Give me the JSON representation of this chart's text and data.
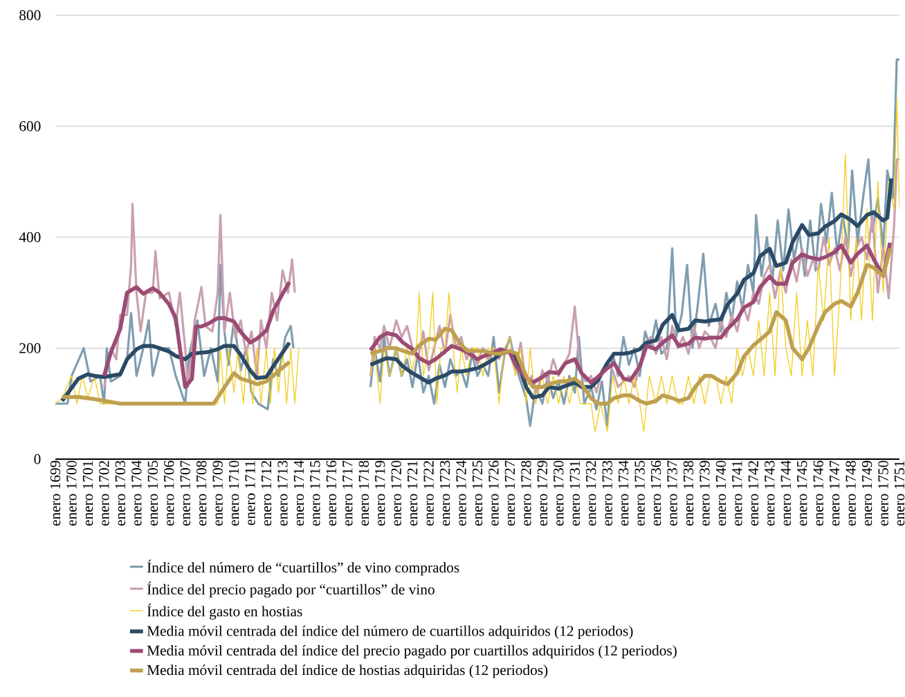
{
  "chart_data": {
    "type": "line",
    "xlim": [
      "1699-01",
      "1751-01"
    ],
    "xticks": [
      {
        "value": "1699-01",
        "label": "enero 1699"
      },
      {
        "value": "1700-01",
        "label": "enero 1700"
      },
      {
        "value": "1701-01",
        "label": "enero 1701"
      },
      {
        "value": "1702-01",
        "label": "enero 1702"
      },
      {
        "value": "1703-01",
        "label": "enero 1703"
      },
      {
        "value": "1704-01",
        "label": "enero 1704"
      },
      {
        "value": "1705-01",
        "label": "enero 1705"
      },
      {
        "value": "1706-01",
        "label": "enero 1706"
      },
      {
        "value": "1707-01",
        "label": "enero 1707"
      },
      {
        "value": "1708-01",
        "label": "enero 1708"
      },
      {
        "value": "1709-01",
        "label": "enero 1709"
      },
      {
        "value": "1710-01",
        "label": "enero 1710"
      },
      {
        "value": "1711-01",
        "label": "enero 1711"
      },
      {
        "value": "1712-01",
        "label": "enero 1712"
      },
      {
        "value": "1713-01",
        "label": "enero 1713"
      },
      {
        "value": "1714-01",
        "label": "enero 1714"
      },
      {
        "value": "1715-01",
        "label": "enero 1715"
      },
      {
        "value": "1716-01",
        "label": "enero 1716"
      },
      {
        "value": "1717-01",
        "label": "enero 1717"
      },
      {
        "value": "1718-01",
        "label": "enero 1718"
      },
      {
        "value": "1719-01",
        "label": "enero 1719"
      },
      {
        "value": "1720-01",
        "label": "enero 1720"
      },
      {
        "value": "1721-01",
        "label": "enero 1721"
      },
      {
        "value": "1722-01",
        "label": "enero 1722"
      },
      {
        "value": "1723-01",
        "label": "enero 1723"
      },
      {
        "value": "1724-01",
        "label": "enero 1724"
      },
      {
        "value": "1725-01",
        "label": "enero 1725"
      },
      {
        "value": "1726-01",
        "label": "enero 1726"
      },
      {
        "value": "1727-01",
        "label": "enero 1727"
      },
      {
        "value": "1728-01",
        "label": "enero 1728"
      },
      {
        "value": "1729-01",
        "label": "enero 1729"
      },
      {
        "value": "1730-01",
        "label": "enero 1730"
      },
      {
        "value": "1731-01",
        "label": "enero 1731"
      },
      {
        "value": "1732-01",
        "label": "enero 1732"
      },
      {
        "value": "1733-01",
        "label": "enero 1733"
      },
      {
        "value": "1734-01",
        "label": "enero 1734"
      },
      {
        "value": "1735-01",
        "label": "enero 1735"
      },
      {
        "value": "1736-01",
        "label": "enero 1736"
      },
      {
        "value": "1737-01",
        "label": "enero 1737"
      },
      {
        "value": "1738-01",
        "label": "enero 1738"
      },
      {
        "value": "1739-01",
        "label": "enero 1739"
      },
      {
        "value": "1740-01",
        "label": "enero 1740"
      },
      {
        "value": "1741-01",
        "label": "enero 1741"
      },
      {
        "value": "1742-01",
        "label": "enero 1742"
      },
      {
        "value": "1743-01",
        "label": "enero 1743"
      },
      {
        "value": "1744-01",
        "label": "enero 1744"
      },
      {
        "value": "1745-01",
        "label": "enero 1745"
      },
      {
        "value": "1746-01",
        "label": "enero 1746"
      },
      {
        "value": "1747-01",
        "label": "enero 1747"
      },
      {
        "value": "1748-01",
        "label": "enero 1748"
      },
      {
        "value": "1749-01",
        "label": "enero 1749"
      },
      {
        "value": "1750-01",
        "label": "enero 1750"
      },
      {
        "value": "1751-01",
        "label": "enero 1751"
      }
    ],
    "ylim": [
      0,
      800
    ],
    "yticks": [
      0,
      200,
      400,
      600,
      800
    ],
    "grid": "y",
    "legend": "bottom",
    "series": [
      {
        "name": "Índice del número de “cuartillos” de vino comprados",
        "color": "#7f9db0",
        "x": [
          "1699-01",
          "1699-10",
          "1700-01",
          "1700-10",
          "1701-03",
          "1701-10",
          "1702-01",
          "1702-03",
          "1702-06",
          "1703-01",
          "1703-06",
          "1703-09",
          "1704-01",
          "1704-06",
          "1704-10",
          "1705-01",
          "1705-06",
          "1706-01",
          "1706-06",
          "1707-01",
          "1707-04",
          "1707-10",
          "1708-03",
          "1708-08",
          "1709-01",
          "1709-03",
          "1709-06",
          "1709-09",
          "1710-01",
          "1710-06",
          "1710-10",
          "1711-02",
          "1711-07",
          "1712-02",
          "1712-06",
          "1712-10",
          "1713-03",
          "1713-07",
          "1713-09",
          "1716-01",
          "1718-06",
          "1718-09",
          "1719-01",
          "1719-04",
          "1719-08",
          "1720-01",
          "1720-05",
          "1720-09",
          "1721-01",
          "1721-05",
          "1721-09",
          "1722-01",
          "1722-05",
          "1722-09",
          "1723-01",
          "1723-05",
          "1723-09",
          "1724-01",
          "1724-05",
          "1724-09",
          "1725-01",
          "1725-05",
          "1725-09",
          "1726-01",
          "1726-05",
          "1726-09",
          "1727-01",
          "1727-05",
          "1727-09",
          "1728-01",
          "1728-04",
          "1728-08",
          "1729-01",
          "1729-05",
          "1729-09",
          "1730-01",
          "1730-05",
          "1730-09",
          "1731-01",
          "1731-04",
          "1731-08",
          "1732-01",
          "1732-05",
          "1732-09",
          "1733-01",
          "1733-05",
          "1733-09",
          "1734-01",
          "1734-05",
          "1734-09",
          "1735-01",
          "1735-05",
          "1735-09",
          "1736-01",
          "1736-05",
          "1736-09",
          "1737-01",
          "1737-04",
          "1737-08",
          "1737-12",
          "1738-04",
          "1738-08",
          "1738-12",
          "1739-04",
          "1739-09",
          "1740-01",
          "1740-05",
          "1740-09",
          "1741-01",
          "1741-05",
          "1741-09",
          "1742-01",
          "1742-03",
          "1742-07",
          "1742-11",
          "1743-03",
          "1743-07",
          "1743-11",
          "1744-03",
          "1744-07",
          "1744-11",
          "1745-03",
          "1745-07",
          "1745-11",
          "1746-03",
          "1746-07",
          "1746-11",
          "1747-03",
          "1747-07",
          "1747-11",
          "1748-02",
          "1748-06",
          "1748-10",
          "1749-02",
          "1749-05",
          "1749-09",
          "1750-01",
          "1750-04",
          "1750-08",
          "1750-11",
          "1751-01"
        ],
        "values": [
          100,
          100,
          150,
          200,
          140,
          150,
          100,
          200,
          140,
          150,
          180,
          263,
          150,
          200,
          250,
          150,
          200,
          200,
          150,
          100,
          190,
          250,
          150,
          200,
          140,
          350,
          230,
          170,
          250,
          160,
          200,
          120,
          100,
          90,
          180,
          150,
          220,
          240,
          200,
          null,
          130,
          200,
          140,
          220,
          150,
          200,
          150,
          180,
          130,
          190,
          120,
          150,
          100,
          170,
          130,
          180,
          150,
          160,
          130,
          190,
          150,
          170,
          150,
          220,
          120,
          190,
          220,
          170,
          140,
          110,
          60,
          130,
          100,
          150,
          110,
          140,
          100,
          150,
          120,
          220,
          100,
          130,
          90,
          140,
          60,
          190,
          150,
          220,
          170,
          200,
          150,
          230,
          200,
          250,
          190,
          200,
          380,
          220,
          260,
          350,
          200,
          280,
          370,
          240,
          280,
          230,
          300,
          250,
          320,
          270,
          350,
          300,
          440,
          330,
          400,
          320,
          430,
          340,
          450,
          360,
          410,
          330,
          430,
          340,
          460,
          390,
          480,
          370,
          440,
          380,
          520,
          390,
          470,
          540,
          410,
          470,
          380,
          520,
          470,
          720,
          720
        ]
      },
      {
        "name": "Índice del precio pagado por “cuartillos” de vino",
        "color": "#c9a0ae",
        "x": [
          "1702-01",
          "1702-06",
          "1702-10",
          "1703-01",
          "1703-06",
          "1703-09",
          "1703-10",
          "1704-01",
          "1704-04",
          "1704-08",
          "1705-01",
          "1705-03",
          "1705-06",
          "1706-01",
          "1706-06",
          "1706-09",
          "1707-01",
          "1707-03",
          "1707-08",
          "1708-01",
          "1708-04",
          "1708-09",
          "1709-01",
          "1709-03",
          "1709-06",
          "1709-10",
          "1710-02",
          "1710-06",
          "1710-10",
          "1711-02",
          "1711-06",
          "1711-09",
          "1712-01",
          "1712-05",
          "1712-09",
          "1713-01",
          "1713-05",
          "1713-08",
          "1713-10",
          "1716-01",
          "1718-06",
          "1718-09",
          "1719-01",
          "1719-04",
          "1719-08",
          "1720-01",
          "1720-05",
          "1720-09",
          "1721-01",
          "1721-05",
          "1721-09",
          "1722-01",
          "1722-05",
          "1722-09",
          "1723-01",
          "1723-05",
          "1723-09",
          "1724-01",
          "1724-05",
          "1724-09",
          "1725-01",
          "1725-05",
          "1725-09",
          "1726-01",
          "1726-05",
          "1726-09",
          "1727-01",
          "1727-05",
          "1727-09",
          "1728-01",
          "1728-05",
          "1728-09",
          "1729-01",
          "1729-05",
          "1729-09",
          "1730-01",
          "1730-05",
          "1730-09",
          "1731-01",
          "1731-05",
          "1731-09",
          "1732-01",
          "1732-05",
          "1732-09",
          "1733-01",
          "1733-05",
          "1733-09",
          "1734-01",
          "1734-05",
          "1734-09",
          "1735-01",
          "1735-05",
          "1735-09",
          "1736-01",
          "1736-05",
          "1736-09",
          "1737-01",
          "1737-05",
          "1737-09",
          "1738-01",
          "1738-05",
          "1738-09",
          "1739-01",
          "1739-05",
          "1739-09",
          "1740-01",
          "1740-05",
          "1740-09",
          "1741-01",
          "1741-05",
          "1741-09",
          "1742-01",
          "1742-05",
          "1742-09",
          "1743-01",
          "1743-05",
          "1743-09",
          "1744-01",
          "1744-05",
          "1744-09",
          "1745-01",
          "1745-05",
          "1745-09",
          "1746-01",
          "1746-05",
          "1746-09",
          "1747-01",
          "1747-05",
          "1747-09",
          "1748-01",
          "1748-05",
          "1748-09",
          "1749-01",
          "1749-05",
          "1749-09",
          "1750-01",
          "1750-05",
          "1750-09",
          "1750-11",
          "1751-01"
        ],
        "values": [
          130,
          200,
          180,
          260,
          260,
          350,
          460,
          300,
          230,
          300,
          300,
          375,
          290,
          300,
          240,
          300,
          200,
          130,
          250,
          310,
          240,
          230,
          300,
          440,
          230,
          300,
          220,
          250,
          190,
          230,
          150,
          250,
          200,
          300,
          250,
          340,
          300,
          360,
          300,
          null,
          150,
          220,
          200,
          240,
          200,
          250,
          220,
          240,
          200,
          180,
          230,
          160,
          200,
          240,
          190,
          260,
          200,
          220,
          180,
          200,
          170,
          200,
          180,
          200,
          180,
          200,
          190,
          160,
          210,
          130,
          150,
          120,
          160,
          140,
          180,
          150,
          170,
          190,
          275,
          160,
          140,
          150,
          120,
          160,
          170,
          160,
          130,
          140,
          150,
          130,
          170,
          200,
          220,
          190,
          220,
          180,
          240,
          200,
          220,
          190,
          240,
          200,
          230,
          220,
          200,
          250,
          220,
          260,
          230,
          280,
          250,
          300,
          280,
          330,
          350,
          290,
          340,
          300,
          360,
          320,
          380,
          330,
          360,
          340,
          400,
          350,
          380,
          340,
          400,
          330,
          380,
          400,
          360,
          440,
          300,
          380,
          290,
          420,
          540,
          540
        ]
      },
      {
        "name": "Índice del gasto en hostias",
        "color": "#f2cd1f",
        "x": [
          "1699-01",
          "1699-06",
          "1700-01",
          "1700-05",
          "1700-09",
          "1701-01",
          "1701-06",
          "1701-10",
          "1702-01",
          "1709-01",
          "1709-03",
          "1709-06",
          "1709-09",
          "1710-01",
          "1710-04",
          "1710-08",
          "1710-11",
          "1711-03",
          "1711-06",
          "1711-09",
          "1712-01",
          "1712-04",
          "1712-07",
          "1712-10",
          "1713-01",
          "1713-04",
          "1713-07",
          "1713-10",
          "1714-01",
          "1716-01",
          "1718-06",
          "1718-09",
          "1719-01",
          "1719-04",
          "1719-08",
          "1720-01",
          "1720-05",
          "1720-09",
          "1721-01",
          "1721-04",
          "1721-06",
          "1721-09",
          "1722-01",
          "1722-04",
          "1722-07",
          "1722-10",
          "1723-01",
          "1723-04",
          "1723-07",
          "1723-10",
          "1724-01",
          "1724-05",
          "1724-09",
          "1725-01",
          "1725-05",
          "1725-09",
          "1726-01",
          "1726-05",
          "1726-09",
          "1727-01",
          "1727-05",
          "1727-09",
          "1728-01",
          "1728-04",
          "1728-08",
          "1729-01",
          "1729-05",
          "1729-09",
          "1730-01",
          "1730-05",
          "1730-09",
          "1731-01",
          "1731-05",
          "1732-01",
          "1732-04",
          "1732-08",
          "1733-01",
          "1733-05",
          "1733-09",
          "1734-01",
          "1734-05",
          "1734-09",
          "1735-01",
          "1735-04",
          "1735-08",
          "1736-01",
          "1736-05",
          "1736-09",
          "1737-01",
          "1737-05",
          "1737-09",
          "1738-01",
          "1738-05",
          "1738-09",
          "1739-01",
          "1739-05",
          "1739-09",
          "1740-01",
          "1740-05",
          "1740-09",
          "1741-01",
          "1741-05",
          "1741-09",
          "1742-01",
          "1742-05",
          "1742-09",
          "1743-01",
          "1743-05",
          "1743-09",
          "1744-01",
          "1744-05",
          "1744-09",
          "1745-01",
          "1745-05",
          "1745-09",
          "1746-01",
          "1746-05",
          "1746-09",
          "1747-01",
          "1747-05",
          "1747-09",
          "1748-01",
          "1748-05",
          "1748-09",
          "1749-01",
          "1749-05",
          "1749-09",
          "1750-01",
          "1750-05",
          "1750-09",
          "1750-11",
          "1751-01"
        ],
        "values": [
          100,
          110,
          150,
          100,
          150,
          110,
          150,
          100,
          100,
          100,
          200,
          100,
          200,
          120,
          200,
          100,
          200,
          100,
          200,
          100,
          200,
          100,
          200,
          120,
          200,
          100,
          200,
          100,
          200,
          null,
          150,
          200,
          100,
          200,
          150,
          200,
          150,
          200,
          160,
          200,
          300,
          150,
          200,
          300,
          100,
          200,
          200,
          300,
          200,
          120,
          200,
          150,
          200,
          200,
          150,
          200,
          200,
          100,
          200,
          220,
          150,
          200,
          100,
          200,
          100,
          150,
          100,
          150,
          100,
          150,
          100,
          150,
          100,
          100,
          50,
          100,
          50,
          150,
          100,
          150,
          100,
          150,
          100,
          50,
          150,
          100,
          150,
          100,
          150,
          100,
          100,
          150,
          100,
          150,
          100,
          150,
          150,
          100,
          150,
          100,
          200,
          150,
          200,
          150,
          250,
          150,
          300,
          150,
          350,
          200,
          150,
          300,
          150,
          250,
          150,
          350,
          250,
          400,
          150,
          300,
          550,
          250,
          400,
          250,
          450,
          250,
          500,
          300,
          500,
          450,
          650,
          450
        ]
      },
      {
        "name": "Media móvil centrada del índice del número de cuartillos adquiridos (12 periodos)",
        "color": "#2b4a66",
        "x": [
          "1699-06",
          "1700-06",
          "1701-01",
          "1701-06",
          "1702-01",
          "1702-06",
          "1703-01",
          "1703-06",
          "1704-01",
          "1704-06",
          "1705-01",
          "1705-06",
          "1706-01",
          "1706-06",
          "1707-01",
          "1707-06",
          "1708-01",
          "1708-06",
          "1709-01",
          "1709-06",
          "1710-01",
          "1710-06",
          "1711-01",
          "1711-06",
          "1712-01",
          "1712-06",
          "1713-01",
          "1713-06",
          "1716-01",
          "1718-06",
          "1719-01",
          "1719-06",
          "1720-01",
          "1720-06",
          "1721-01",
          "1721-06",
          "1722-01",
          "1722-06",
          "1723-01",
          "1723-06",
          "1724-01",
          "1724-06",
          "1725-01",
          "1725-06",
          "1726-01",
          "1726-06",
          "1727-01",
          "1727-06",
          "1728-01",
          "1728-06",
          "1729-01",
          "1729-06",
          "1730-01",
          "1730-06",
          "1731-01",
          "1731-06",
          "1732-01",
          "1732-06",
          "1733-01",
          "1733-06",
          "1734-01",
          "1734-06",
          "1735-01",
          "1735-06",
          "1736-01",
          "1736-06",
          "1737-01",
          "1737-06",
          "1738-01",
          "1738-06",
          "1739-01",
          "1739-06",
          "1740-01",
          "1740-06",
          "1741-01",
          "1741-06",
          "1742-01",
          "1742-06",
          "1743-01",
          "1743-06",
          "1744-01",
          "1744-06",
          "1745-01",
          "1745-06",
          "1746-01",
          "1746-06",
          "1747-01",
          "1747-06",
          "1748-01",
          "1748-06",
          "1749-01",
          "1749-06",
          "1750-01",
          "1750-04",
          "1750-07"
        ],
        "values": [
          105,
          145,
          153,
          150,
          148,
          150,
          153,
          180,
          198,
          204,
          204,
          200,
          194,
          186,
          180,
          190,
          192,
          193,
          198,
          204,
          204,
          188,
          160,
          146,
          148,
          167,
          192,
          210,
          null,
          170,
          177,
          182,
          180,
          167,
          155,
          148,
          138,
          145,
          151,
          158,
          158,
          160,
          164,
          170,
          180,
          190,
          194,
          180,
          130,
          111,
          115,
          130,
          127,
          132,
          138,
          130,
          130,
          142,
          173,
          190,
          190,
          192,
          198,
          210,
          214,
          242,
          260,
          232,
          235,
          250,
          248,
          250,
          252,
          279,
          298,
          323,
          335,
          366,
          379,
          348,
          354,
          391,
          422,
          404,
          407,
          419,
          429,
          441,
          431,
          420,
          440,
          445,
          430,
          435,
          506
        ]
      },
      {
        "name": "Media móvil centrada del índice del precio pagado por cuartillos adquiridos (12 periodos)",
        "color": "#9b4b74",
        "x": [
          "1702-01",
          "1702-06",
          "1703-01",
          "1703-06",
          "1704-01",
          "1704-06",
          "1705-01",
          "1705-06",
          "1706-01",
          "1706-06",
          "1707-01",
          "1707-06",
          "1707-09",
          "1708-01",
          "1708-06",
          "1709-01",
          "1709-06",
          "1710-01",
          "1710-06",
          "1711-01",
          "1711-06",
          "1712-01",
          "1712-06",
          "1713-01",
          "1713-06",
          "1716-01",
          "1718-06",
          "1719-01",
          "1719-06",
          "1720-01",
          "1720-06",
          "1721-01",
          "1721-06",
          "1722-01",
          "1722-06",
          "1723-01",
          "1723-06",
          "1724-01",
          "1724-06",
          "1725-01",
          "1725-06",
          "1726-01",
          "1726-06",
          "1727-01",
          "1727-06",
          "1728-01",
          "1728-06",
          "1729-01",
          "1729-06",
          "1730-01",
          "1730-06",
          "1731-01",
          "1731-06",
          "1732-01",
          "1732-06",
          "1733-01",
          "1733-06",
          "1734-01",
          "1734-06",
          "1735-01",
          "1735-06",
          "1736-01",
          "1736-06",
          "1737-01",
          "1737-06",
          "1738-01",
          "1738-06",
          "1739-01",
          "1739-06",
          "1740-01",
          "1740-06",
          "1741-01",
          "1741-06",
          "1742-01",
          "1742-06",
          "1743-01",
          "1743-06",
          "1744-01",
          "1744-06",
          "1745-01",
          "1745-06",
          "1746-01",
          "1746-06",
          "1747-01",
          "1747-06",
          "1748-01",
          "1748-06",
          "1749-01",
          "1749-06",
          "1750-01",
          "1750-06"
        ],
        "values": [
          150,
          192,
          235,
          300,
          310,
          298,
          308,
          300,
          279,
          254,
          130,
          145,
          239,
          239,
          244,
          254,
          254,
          248,
          229,
          210,
          217,
          232,
          267,
          298,
          319,
          null,
          196,
          220,
          227,
          223,
          210,
          198,
          182,
          173,
          180,
          194,
          204,
          198,
          192,
          180,
          186,
          192,
          198,
          192,
          167,
          145,
          138,
          148,
          157,
          155,
          173,
          180,
          155,
          138,
          148,
          164,
          173,
          145,
          142,
          167,
          204,
          198,
          210,
          223,
          204,
          208,
          219,
          217,
          219,
          219,
          235,
          252,
          273,
          283,
          310,
          329,
          316,
          316,
          354,
          369,
          364,
          360,
          364,
          373,
          385,
          354,
          370,
          385,
          360,
          330,
          390
        ]
      },
      {
        "name": "Media móvil centrada del índice de hostias adquiridas (12 periodos)",
        "color": "#bfa050",
        "x": [
          "1699-06",
          "1700-06",
          "1701-06",
          "1702-06",
          "1703-01",
          "1708-06",
          "1708-10",
          "1709-07",
          "1710-01",
          "1710-06",
          "1711-01",
          "1711-06",
          "1712-01",
          "1712-06",
          "1713-01",
          "1713-06",
          "1716-01",
          "1718-06",
          "1719-01",
          "1719-06",
          "1720-01",
          "1720-06",
          "1721-01",
          "1721-06",
          "1722-01",
          "1722-06",
          "1723-01",
          "1723-06",
          "1724-01",
          "1724-06",
          "1725-01",
          "1725-06",
          "1726-01",
          "1726-06",
          "1727-01",
          "1727-06",
          "1728-01",
          "1728-06",
          "1729-01",
          "1729-06",
          "1730-01",
          "1730-06",
          "1731-01",
          "1731-06",
          "1732-01",
          "1732-06",
          "1733-01",
          "1733-06",
          "1734-01",
          "1734-06",
          "1735-01",
          "1735-06",
          "1736-01",
          "1736-06",
          "1737-01",
          "1737-06",
          "1738-01",
          "1738-06",
          "1739-01",
          "1739-06",
          "1740-01",
          "1740-06",
          "1741-01",
          "1741-06",
          "1742-01",
          "1742-06",
          "1743-01",
          "1743-06",
          "1744-01",
          "1744-06",
          "1745-01",
          "1745-06",
          "1746-01",
          "1746-06",
          "1747-01",
          "1747-06",
          "1748-01",
          "1748-06",
          "1749-01",
          "1749-06",
          "1750-01",
          "1750-06"
        ],
        "values": [
          112,
          112,
          108,
          103,
          100,
          100,
          100,
          133,
          155,
          145,
          140,
          135,
          140,
          150,
          165,
          175,
          null,
          190,
          195,
          200,
          200,
          195,
          190,
          205,
          217,
          215,
          235,
          232,
          205,
          195,
          195,
          195,
          190,
          190,
          195,
          190,
          150,
          130,
          130,
          135,
          140,
          140,
          145,
          135,
          110,
          100,
          100,
          110,
          115,
          115,
          105,
          100,
          105,
          115,
          110,
          105,
          110,
          130,
          150,
          150,
          140,
          135,
          155,
          185,
          205,
          215,
          230,
          265,
          250,
          200,
          180,
          200,
          240,
          265,
          280,
          285,
          275,
          300,
          350,
          345,
          330,
          380
        ]
      }
    ]
  }
}
